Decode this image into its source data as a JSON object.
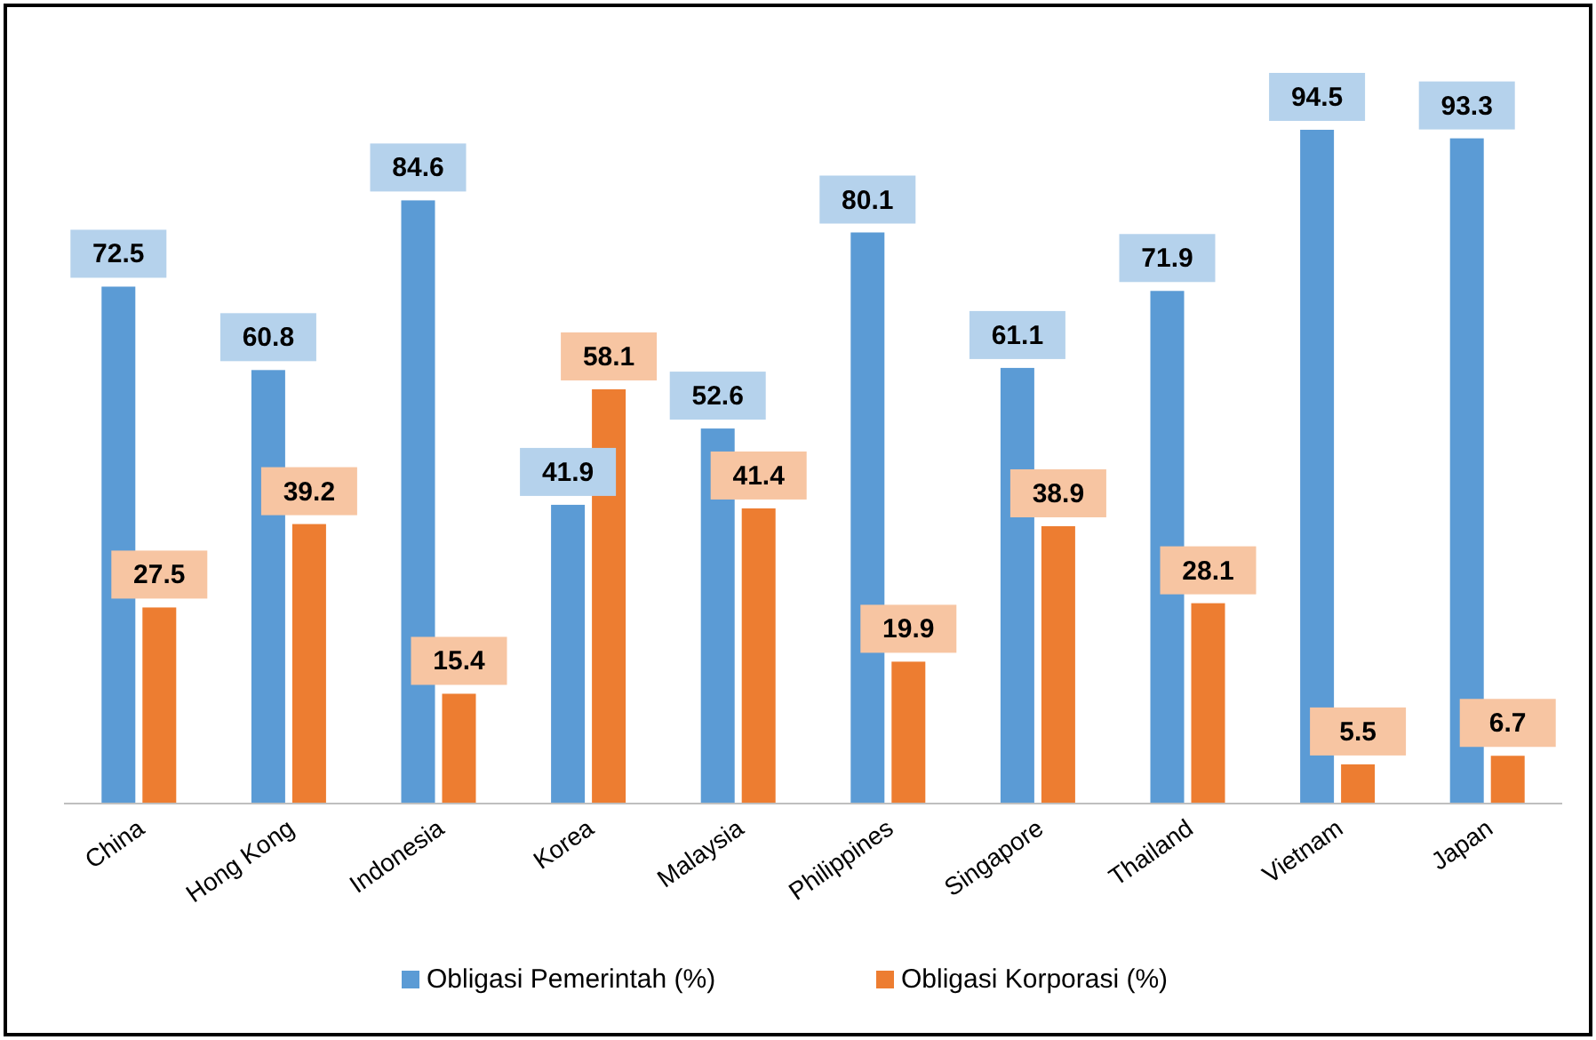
{
  "chart_data": {
    "type": "bar",
    "data_labels": true,
    "legend": "bottom",
    "grid": false,
    "categories": [
      "China",
      "Hong Kong",
      "Indonesia",
      "Korea",
      "Malaysia",
      "Philippines",
      "Singapore",
      "Thailand",
      "Vietnam",
      "Japan"
    ],
    "series": [
      {
        "name": "Obligasi Pemerintah (%)",
        "color": "#5b9bd5",
        "values": [
          72.5,
          60.8,
          84.6,
          41.9,
          52.6,
          80.1,
          61.1,
          71.9,
          94.5,
          93.3
        ]
      },
      {
        "name": "Obligasi Korporasi (%)",
        "color": "#ed7d31",
        "values": [
          27.5,
          39.2,
          15.4,
          58.1,
          41.4,
          19.9,
          38.9,
          28.1,
          5.5,
          6.7
        ]
      }
    ]
  }
}
